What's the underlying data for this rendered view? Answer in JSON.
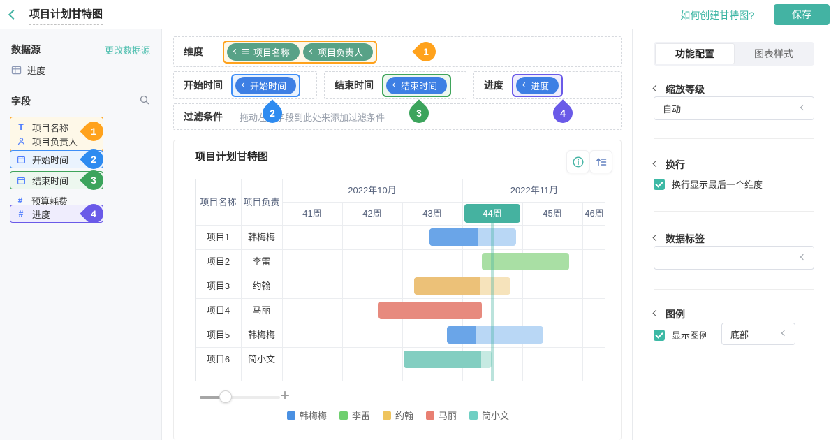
{
  "header": {
    "title": "项目计划甘特图",
    "help_link": "如何创建甘特图?",
    "save": "保存"
  },
  "sidebar": {
    "datasource_title": "数据源",
    "change_datasource": "更改数据源",
    "datasource_name": "进度",
    "fields_title": "字段",
    "fields": [
      {
        "icon": "text",
        "label": "项目名称"
      },
      {
        "icon": "person",
        "label": "项目负责人"
      },
      {
        "icon": "calendar",
        "label": "开始时间"
      },
      {
        "icon": "calendar",
        "label": "结束时间"
      },
      {
        "icon": "number",
        "label": "预算耗费"
      },
      {
        "icon": "number",
        "label": "进度"
      }
    ]
  },
  "markers": {
    "m1": "1",
    "m2": "2",
    "m3": "3",
    "m4": "4"
  },
  "config": {
    "dimension_label": "维度",
    "dimension_chips": [
      "项目名称",
      "项目负责人"
    ],
    "start_label": "开始时间",
    "start_chip": "开始时间",
    "end_label": "结束时间",
    "end_chip": "结束时间",
    "progress_label": "进度",
    "progress_chip": "进度",
    "filter_label": "过滤条件",
    "filter_hint": "拖动左侧字段到此处来添加过滤条件"
  },
  "chart_data": {
    "type": "gantt",
    "title": "项目计划甘特图",
    "table_headers": [
      "项目名称",
      "项目负责"
    ],
    "first_week": 41,
    "months": [
      {
        "label": "2022年10月",
        "from_week": 41,
        "to_week": 44
      },
      {
        "label": "2022年11月",
        "from_week": 44,
        "to_week": 47.4
      }
    ],
    "weeks": [
      "41周",
      "42周",
      "43周",
      "44周",
      "45周",
      "46周"
    ],
    "highlight_week": "44周",
    "highlight_color": "#45B2A0",
    "today_week": 44.5,
    "rows": [
      {
        "project": "项目1",
        "owner": "韩梅梅",
        "start": 43.45,
        "end": 44.9,
        "progress": 0.56,
        "color": "#6AA5E8",
        "light": "#B9D7F5"
      },
      {
        "project": "项目2",
        "owner": "李雷",
        "start": 44.33,
        "end": 45.78,
        "progress": 0.0,
        "color": "#7CC97C",
        "light": "#A9DFA4"
      },
      {
        "project": "项目3",
        "owner": "约翰",
        "start": 43.2,
        "end": 44.8,
        "progress": 0.69,
        "color": "#ECC178",
        "light": "#F6E3BB"
      },
      {
        "project": "项目4",
        "owner": "马丽",
        "start": 42.6,
        "end": 44.33,
        "progress": 1.0,
        "color": "#E78A7E",
        "light": "#F4CCC7"
      },
      {
        "project": "项目5",
        "owner": "韩梅梅",
        "start": 43.74,
        "end": 45.35,
        "progress": 0.3,
        "color": "#6AA5E8",
        "light": "#B9D7F5"
      },
      {
        "project": "项目6",
        "owner": "简小文",
        "start": 43.02,
        "end": 44.49,
        "progress": 0.88,
        "color": "#83CEC1",
        "light": "#C6EAE2"
      }
    ],
    "legend": [
      {
        "label": "韩梅梅",
        "color": "#4A90E2"
      },
      {
        "label": "李雷",
        "color": "#6FCF6F"
      },
      {
        "label": "约翰",
        "color": "#EFC45D"
      },
      {
        "label": "马丽",
        "color": "#E87F72"
      },
      {
        "label": "简小文",
        "color": "#6FCFC3"
      }
    ]
  },
  "panel": {
    "tab_active": "功能配置",
    "tab_inactive": "图表样式",
    "zoom_title": "缩放等级",
    "zoom_value": "自动",
    "wrap_title": "换行",
    "wrap_checkbox": "换行显示最后一个维度",
    "datalabel_title": "数据标签",
    "legend_title": "图例",
    "legend_checkbox": "显示图例",
    "legend_position": "底部"
  }
}
